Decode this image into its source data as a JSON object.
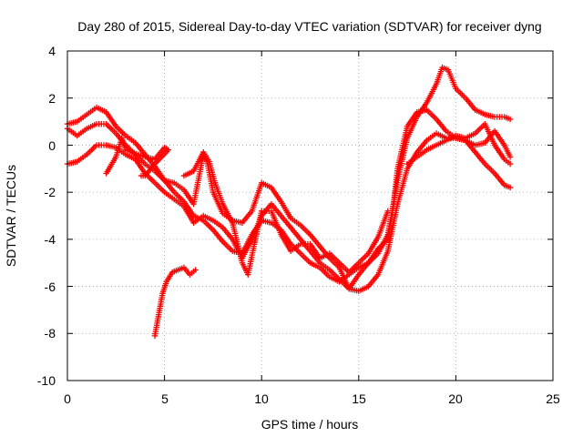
{
  "chart_data": {
    "type": "scatter",
    "title": "Day 280 of 2015, Sidereal Day-to-day VTEC variation (SDTVAR) for receiver dyng",
    "xlabel": "GPS time / hours",
    "ylabel": "SDTVAR / TECUs",
    "xlim": [
      0,
      25
    ],
    "ylim": [
      -10,
      4
    ],
    "xticks": [
      "0",
      "5",
      "10",
      "15",
      "20",
      "25"
    ],
    "yticks": [
      "4",
      "2",
      "0",
      "-2",
      "-4",
      "-6",
      "-8",
      "-10"
    ],
    "grid": true,
    "marker": "+",
    "color": "#ff0000",
    "series": [
      {
        "name": "track-1",
        "points": [
          [
            0,
            0.9
          ],
          [
            0.5,
            1.0
          ],
          [
            1,
            1.3
          ],
          [
            1.5,
            1.6
          ],
          [
            2,
            1.4
          ],
          [
            2.5,
            0.8
          ],
          [
            3,
            0.4
          ],
          [
            3.5,
            0.1
          ],
          [
            4,
            -0.4
          ],
          [
            4.5,
            -0.9
          ],
          [
            5,
            -1.5
          ],
          [
            5.5,
            -2.0
          ],
          [
            6,
            -2.4
          ],
          [
            6.5,
            -3.0
          ],
          [
            7,
            -3.2
          ],
          [
            7.5,
            -3.6
          ],
          [
            8,
            -4.1
          ],
          [
            8.5,
            -4.5
          ],
          [
            9,
            -4.6
          ],
          [
            9.5,
            -3.8
          ],
          [
            10,
            -3.2
          ],
          [
            10.5,
            -3.3
          ],
          [
            11,
            -3.6
          ],
          [
            11.5,
            -4.2
          ],
          [
            12,
            -4.6
          ],
          [
            12.5,
            -5.0
          ],
          [
            13,
            -5.2
          ],
          [
            13.5,
            -5.6
          ],
          [
            14,
            -5.8
          ],
          [
            14.5,
            -5.5
          ],
          [
            15,
            -5.2
          ],
          [
            15.5,
            -5.0
          ],
          [
            16,
            -4.6
          ],
          [
            16.5,
            -3.8
          ],
          [
            17,
            -1.5
          ],
          [
            17.5,
            0.3
          ],
          [
            18,
            1.2
          ],
          [
            18.5,
            1.8
          ],
          [
            19,
            2.6
          ],
          [
            19.3,
            3.3
          ],
          [
            19.6,
            3.2
          ],
          [
            20,
            2.4
          ],
          [
            20.5,
            2.0
          ],
          [
            21,
            1.5
          ],
          [
            21.5,
            1.3
          ],
          [
            22,
            1.2
          ],
          [
            22.5,
            1.2
          ],
          [
            22.8,
            1.1
          ]
        ]
      },
      {
        "name": "track-2",
        "points": [
          [
            0,
            0.7
          ],
          [
            0.5,
            0.4
          ],
          [
            1,
            0.7
          ],
          [
            1.5,
            0.9
          ],
          [
            2,
            0.9
          ],
          [
            2.5,
            0.5
          ],
          [
            3,
            0.0
          ],
          [
            3.5,
            -0.4
          ],
          [
            4,
            -0.8
          ],
          [
            4.5,
            -1.1
          ],
          [
            5,
            -1.5
          ],
          [
            5.5,
            -1.6
          ],
          [
            6,
            -1.9
          ],
          [
            6.5,
            -2.5
          ],
          [
            7,
            -0.4
          ],
          [
            7.2,
            -0.7
          ],
          [
            7.5,
            -2.0
          ],
          [
            8,
            -2.9
          ],
          [
            8.5,
            -3.2
          ],
          [
            9,
            -3.3
          ],
          [
            9.5,
            -2.8
          ],
          [
            10,
            -1.6
          ],
          [
            10.5,
            -1.8
          ],
          [
            11,
            -2.4
          ],
          [
            11.5,
            -3.1
          ],
          [
            12,
            -3.4
          ],
          [
            12.5,
            -3.8
          ],
          [
            13,
            -4.3
          ],
          [
            13.5,
            -4.8
          ],
          [
            14,
            -5.2
          ],
          [
            14.5,
            -6.1
          ],
          [
            15,
            -5.5
          ],
          [
            15.5,
            -5.0
          ],
          [
            16,
            -4.4
          ],
          [
            16.5,
            -4.0
          ],
          [
            16.8,
            -2.5
          ],
          [
            17,
            -1.0
          ],
          [
            17.5,
            0.8
          ],
          [
            18,
            1.4
          ],
          [
            18.5,
            1.5
          ],
          [
            19,
            1.1
          ],
          [
            19.5,
            0.6
          ],
          [
            20,
            0.3
          ],
          [
            20.5,
            0.2
          ],
          [
            21,
            0.0
          ],
          [
            21.5,
            0.1
          ],
          [
            22,
            0.6
          ],
          [
            22.5,
            0.0
          ],
          [
            22.8,
            -0.5
          ]
        ]
      },
      {
        "name": "track-3",
        "points": [
          [
            0,
            -0.8
          ],
          [
            0.5,
            -0.7
          ],
          [
            1,
            -0.4
          ],
          [
            1.5,
            0.0
          ],
          [
            2,
            0.0
          ],
          [
            2.5,
            -0.1
          ],
          [
            3,
            -0.4
          ],
          [
            3.5,
            -0.6
          ],
          [
            4,
            -1.2
          ],
          [
            4.5,
            -1.6
          ],
          [
            5,
            -2.0
          ],
          [
            5.5,
            -2.3
          ],
          [
            6,
            -2.6
          ],
          [
            6.5,
            -3.3
          ],
          [
            7,
            -3.0
          ],
          [
            7.5,
            -3.2
          ],
          [
            8,
            -3.5
          ],
          [
            8.5,
            -4.0
          ],
          [
            9,
            -4.8
          ],
          [
            9.5,
            -4.0
          ],
          [
            10,
            -3.0
          ],
          [
            10.5,
            -2.5
          ],
          [
            11,
            -3.0
          ],
          [
            11.5,
            -3.5
          ],
          [
            12,
            -4.0
          ],
          [
            12.5,
            -4.5
          ],
          [
            13,
            -5.0
          ],
          [
            13.5,
            -5.3
          ],
          [
            14,
            -5.7
          ],
          [
            14.5,
            -6.1
          ],
          [
            15,
            -6.2
          ],
          [
            15.5,
            -6.0
          ],
          [
            16,
            -5.5
          ],
          [
            16.5,
            -4.5
          ],
          [
            17,
            -2.5
          ],
          [
            17.5,
            -1.0
          ],
          [
            18,
            -0.3
          ],
          [
            18.5,
            0.2
          ],
          [
            19,
            0.5
          ],
          [
            19.5,
            0.3
          ],
          [
            20,
            0.3
          ],
          [
            20.5,
            0.2
          ],
          [
            21,
            -0.3
          ],
          [
            21.5,
            -0.8
          ],
          [
            22,
            -1.2
          ],
          [
            22.5,
            -1.7
          ],
          [
            22.8,
            -1.8
          ]
        ]
      },
      {
        "name": "track-4",
        "points": [
          [
            2,
            -1.2
          ],
          [
            2.5,
            -0.5
          ],
          [
            2.8,
            0.3
          ],
          [
            3,
            -0.2
          ],
          [
            4,
            -0.5
          ],
          [
            4.5,
            -0.6
          ],
          [
            5,
            -0.1
          ],
          [
            5.2,
            -0.2
          ],
          [
            4.5,
            -0.8
          ],
          [
            4,
            -1.3
          ],
          [
            3.8,
            -1.3
          ]
        ]
      },
      {
        "name": "track-5",
        "points": [
          [
            4.5,
            -8.1
          ],
          [
            4.7,
            -7.2
          ],
          [
            4.9,
            -6.3
          ],
          [
            5.1,
            -5.8
          ],
          [
            5.4,
            -5.4
          ],
          [
            5.7,
            -5.3
          ],
          [
            6,
            -5.2
          ],
          [
            6.3,
            -5.5
          ],
          [
            6.6,
            -5.3
          ]
        ]
      },
      {
        "name": "track-6",
        "points": [
          [
            6,
            -1.3
          ],
          [
            6.5,
            -1.1
          ],
          [
            7,
            -0.3
          ],
          [
            7.3,
            -0.7
          ],
          [
            7.6,
            -1.6
          ],
          [
            8,
            -2.5
          ],
          [
            8.5,
            -3.3
          ],
          [
            9,
            -5.0
          ],
          [
            9.3,
            -5.5
          ],
          [
            9.6,
            -4.3
          ],
          [
            10,
            -2.8
          ],
          [
            10.5,
            -2.8
          ],
          [
            11,
            -3.8
          ],
          [
            11.5,
            -4.5
          ],
          [
            12,
            -4.2
          ],
          [
            12.5,
            -4.2
          ],
          [
            13,
            -4.8
          ],
          [
            13.5,
            -4.6
          ],
          [
            14,
            -5.0
          ],
          [
            14.5,
            -5.4
          ],
          [
            15,
            -5.0
          ],
          [
            15.5,
            -4.6
          ],
          [
            16,
            -3.9
          ],
          [
            16.5,
            -2.8
          ]
        ]
      },
      {
        "name": "track-7",
        "points": [
          [
            17.5,
            -0.8
          ],
          [
            18,
            -0.5
          ],
          [
            18.5,
            -0.2
          ],
          [
            19,
            0.0
          ],
          [
            19.5,
            0.2
          ],
          [
            20,
            0.4
          ],
          [
            20.5,
            0.3
          ],
          [
            21,
            0.5
          ],
          [
            21.5,
            0.9
          ],
          [
            22,
            0.0
          ],
          [
            22.5,
            -0.6
          ],
          [
            22.8,
            -0.8
          ]
        ]
      }
    ]
  }
}
